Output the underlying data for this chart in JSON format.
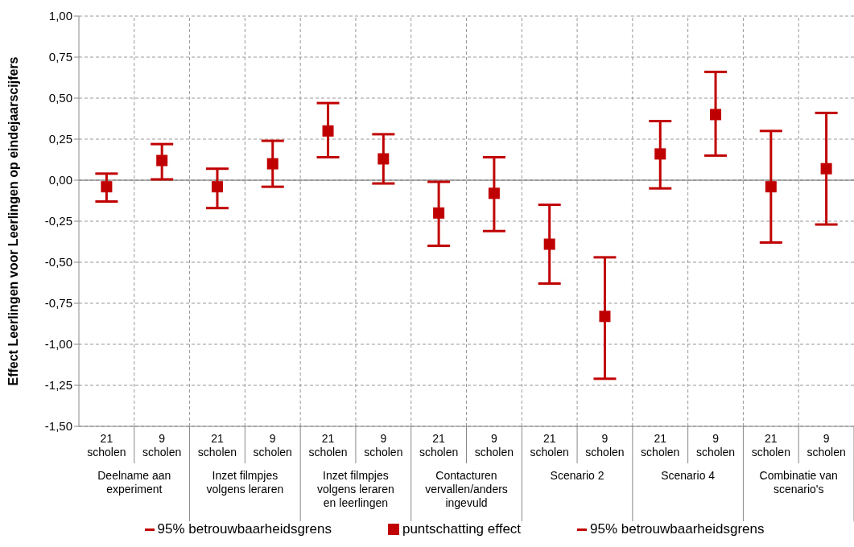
{
  "chart_data": {
    "type": "scatter",
    "ylabel": "Effect Leerlingen voor Leerlingen op eindejaarscijfers",
    "categories": [
      "21 scholen",
      "9 scholen",
      "21 scholen",
      "9 scholen",
      "21 scholen",
      "9 scholen",
      "21 scholen",
      "9 scholen",
      "21 scholen",
      "9 scholen",
      "21 scholen",
      "9 scholen",
      "21 scholen",
      "9 scholen"
    ],
    "annotations": [
      "Deelname aan experiment",
      "Inzet filmpjes volgens leraren",
      "Inzet filmpjes volgens leraren en leerlingen",
      "Contacturen vervallen/anders ingevuld",
      "Scenario 2",
      "Scenario 4",
      "Combinatie van scenario's",
      "95% betrouwbaarheidsgrens",
      "95% betrouwbaarheidsgrens"
    ],
    "series": [
      {
        "name": "puntschatting effect",
        "color": "#c00000",
        "marker": "square",
        "values": [
          -0.04,
          0.12,
          -0.04,
          0.1,
          0.3,
          0.13,
          -0.2,
          -0.08,
          -0.39,
          -0.83,
          0.16,
          0.4,
          -0.04,
          0.07
        ],
        "errors": [
          [
            -0.13,
            0.04
          ],
          [
            0.005,
            0.22
          ],
          [
            -0.17,
            0.07
          ],
          [
            -0.04,
            0.24
          ],
          [
            0.14,
            0.47
          ],
          [
            -0.02,
            0.28
          ],
          [
            -0.4,
            -0.01
          ],
          [
            -0.31,
            0.14
          ],
          [
            -0.63,
            -0.15
          ],
          [
            -1.21,
            -0.47
          ],
          [
            -0.05,
            0.36
          ],
          [
            0.15,
            0.66
          ],
          [
            -0.38,
            0.3
          ],
          [
            -0.27,
            0.41
          ]
        ]
      }
    ],
    "ylim": [
      -1.5,
      1
    ],
    "yticks": [
      {
        "value": -1.5,
        "label": "-1,50"
      },
      {
        "value": -1.25,
        "label": "-1,25"
      },
      {
        "value": -1,
        "label": "-1,00"
      },
      {
        "value": -0.75,
        "label": "-0,75"
      },
      {
        "value": -0.5,
        "label": "-0,50"
      },
      {
        "value": -0.25,
        "label": "-0,25"
      },
      {
        "value": 0,
        "label": "0,00"
      },
      {
        "value": 0.25,
        "label": "0,25"
      },
      {
        "value": 0.5,
        "label": "0,50"
      },
      {
        "value": 0.75,
        "label": "0,75"
      },
      {
        "value": 1,
        "label": "1,00"
      }
    ],
    "grid": true,
    "legend": "bottom"
  }
}
